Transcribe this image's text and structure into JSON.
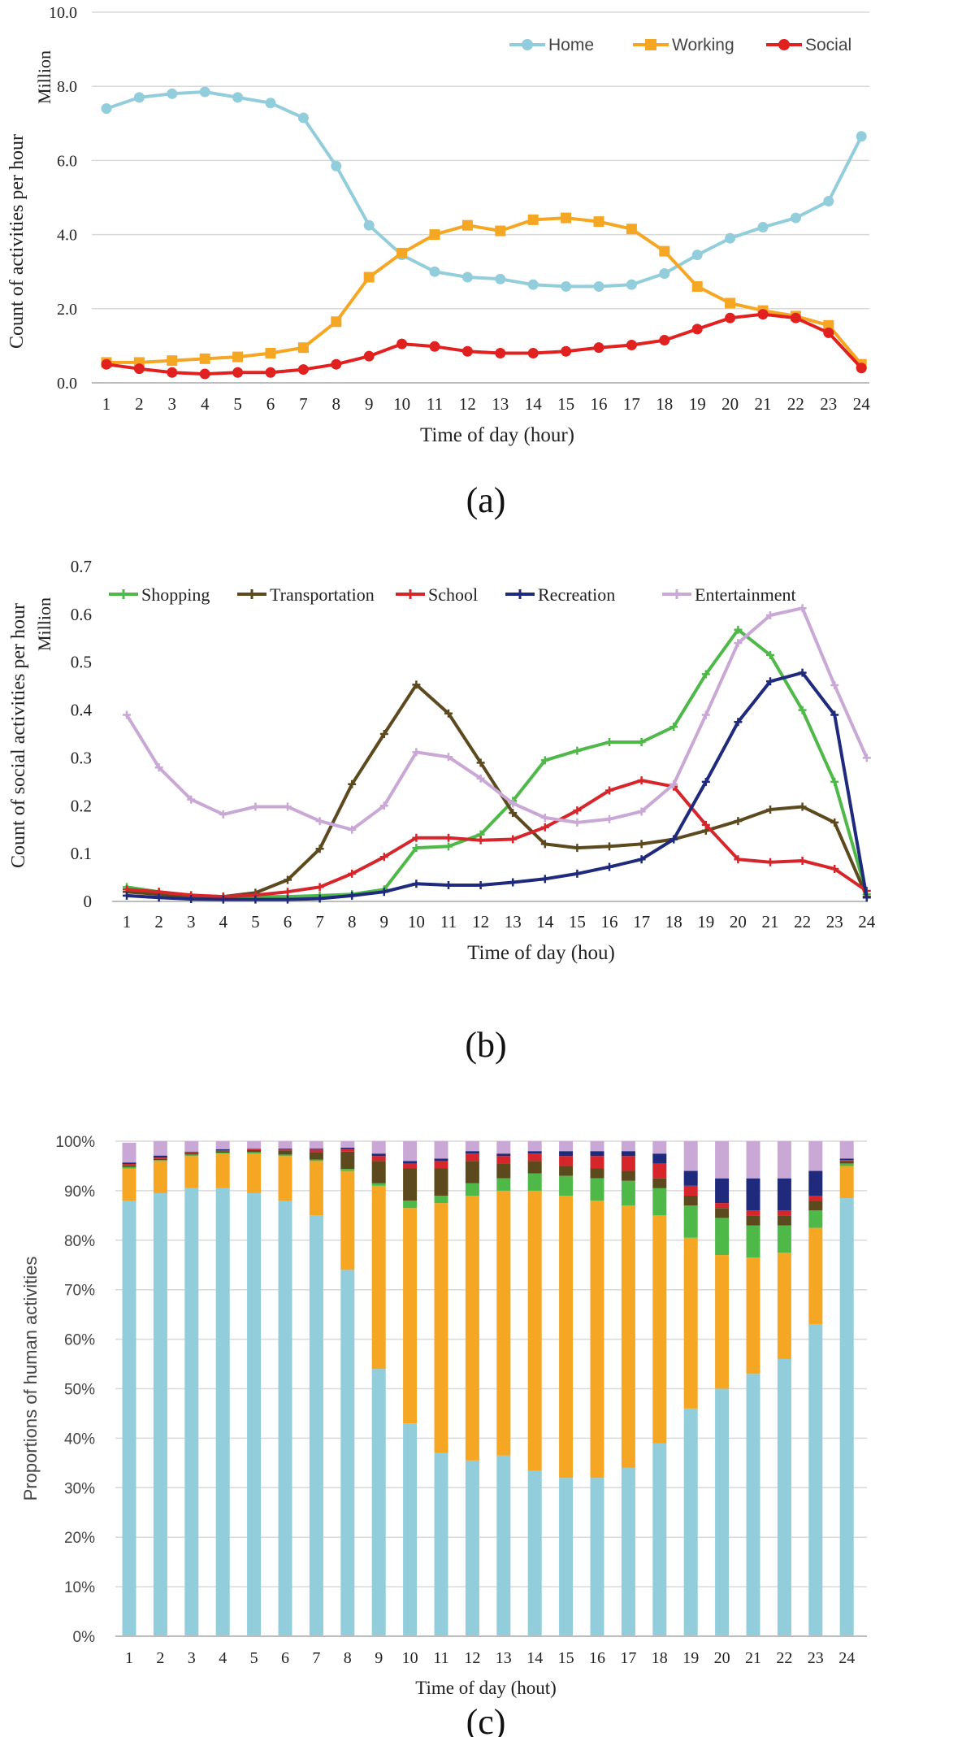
{
  "chart_data": [
    {
      "panel": "a",
      "type": "line",
      "caption": "(a)",
      "unit": "Million",
      "ylabel": "Count of activities per hour",
      "xlabel": "Time of day (hour)",
      "ylim": [
        0,
        10
      ],
      "yticks": [
        "0.0",
        "2.0",
        "4.0",
        "6.0",
        "8.0",
        "10.0"
      ],
      "x": [
        "1",
        "2",
        "3",
        "4",
        "5",
        "6",
        "7",
        "8",
        "9",
        "10",
        "11",
        "12",
        "13",
        "14",
        "15",
        "16",
        "17",
        "18",
        "19",
        "20",
        "21",
        "22",
        "23",
        "24"
      ],
      "legend_position": "top-right",
      "series": [
        {
          "name": "Home",
          "color": "#92CDDC",
          "marker": "circle",
          "values": [
            7.4,
            7.7,
            7.8,
            7.85,
            7.7,
            7.55,
            7.15,
            5.85,
            4.25,
            3.45,
            3.0,
            2.85,
            2.8,
            2.65,
            2.6,
            2.6,
            2.65,
            2.95,
            3.45,
            3.9,
            4.2,
            4.45,
            4.9,
            6.65
          ]
        },
        {
          "name": "Working",
          "color": "#F5A623",
          "marker": "square",
          "values": [
            0.55,
            0.55,
            0.6,
            0.65,
            0.7,
            0.8,
            0.95,
            1.65,
            2.85,
            3.5,
            4.0,
            4.25,
            4.1,
            4.4,
            4.45,
            4.35,
            4.15,
            3.55,
            2.6,
            2.15,
            1.95,
            1.8,
            1.55,
            0.5
          ]
        },
        {
          "name": "Social",
          "color": "#E0211F",
          "marker": "circle",
          "values": [
            0.5,
            0.38,
            0.28,
            0.24,
            0.28,
            0.28,
            0.36,
            0.5,
            0.72,
            1.05,
            0.98,
            0.85,
            0.8,
            0.8,
            0.85,
            0.95,
            1.02,
            1.15,
            1.45,
            1.75,
            1.85,
            1.75,
            1.35,
            0.4
          ]
        }
      ]
    },
    {
      "panel": "b",
      "type": "line",
      "caption": "(b)",
      "unit": "Million",
      "ylabel": "Count of social activities per hour",
      "xlabel": "Time of day (hou)",
      "ylim": [
        0,
        0.7
      ],
      "yticks": [
        "0",
        "0.1",
        "0.2",
        "0.3",
        "0.4",
        "0.5",
        "0.6",
        "0.7"
      ],
      "x": [
        "1",
        "2",
        "3",
        "4",
        "5",
        "6",
        "7",
        "8",
        "9",
        "10",
        "11",
        "12",
        "13",
        "14",
        "15",
        "16",
        "17",
        "18",
        "19",
        "20",
        "21",
        "22",
        "23",
        "24"
      ],
      "legend_position": "top",
      "series": [
        {
          "name": "Shopping",
          "color": "#4EB848",
          "values": [
            0.03,
            0.02,
            0.012,
            0.01,
            0.01,
            0.01,
            0.012,
            0.015,
            0.025,
            0.112,
            0.115,
            0.14,
            0.21,
            0.295,
            0.315,
            0.333,
            0.333,
            0.365,
            0.475,
            0.568,
            0.515,
            0.4,
            0.25,
            0.015
          ]
        },
        {
          "name": "Transportation",
          "color": "#5C4A1E",
          "values": [
            0.02,
            0.015,
            0.01,
            0.01,
            0.018,
            0.045,
            0.11,
            0.245,
            0.35,
            0.453,
            0.393,
            0.29,
            0.185,
            0.12,
            0.112,
            0.115,
            0.12,
            0.13,
            0.148,
            0.168,
            0.192,
            0.198,
            0.165,
            0.01
          ]
        },
        {
          "name": "School",
          "color": "#D7262B",
          "values": [
            0.025,
            0.02,
            0.013,
            0.01,
            0.013,
            0.02,
            0.03,
            0.058,
            0.093,
            0.133,
            0.133,
            0.128,
            0.13,
            0.155,
            0.19,
            0.232,
            0.253,
            0.24,
            0.16,
            0.088,
            0.082,
            0.085,
            0.068,
            0.022
          ]
        },
        {
          "name": "Recreation",
          "color": "#1F2A7C",
          "values": [
            0.012,
            0.008,
            0.005,
            0.004,
            0.004,
            0.004,
            0.006,
            0.012,
            0.02,
            0.037,
            0.034,
            0.034,
            0.04,
            0.047,
            0.058,
            0.072,
            0.088,
            0.13,
            0.25,
            0.375,
            0.46,
            0.478,
            0.39,
            0.008
          ]
        },
        {
          "name": "Entertainment",
          "color": "#C9A8D6",
          "values": [
            0.39,
            0.28,
            0.213,
            0.182,
            0.198,
            0.198,
            0.168,
            0.15,
            0.2,
            0.312,
            0.302,
            0.257,
            0.205,
            0.175,
            0.165,
            0.172,
            0.188,
            0.245,
            0.39,
            0.54,
            0.598,
            0.613,
            0.452,
            0.3
          ]
        }
      ]
    },
    {
      "panel": "c",
      "type": "bar",
      "stacked": true,
      "caption": "(c)",
      "ylabel": "Proportions of human activities",
      "xlabel": "Time of day (hout)",
      "ylim": [
        0,
        100
      ],
      "yticks": [
        "0%",
        "10%",
        "20%",
        "30%",
        "40%",
        "50%",
        "60%",
        "70%",
        "80%",
        "90%",
        "100%"
      ],
      "categories": [
        "1",
        "2",
        "3",
        "4",
        "5",
        "6",
        "7",
        "8",
        "9",
        "10",
        "11",
        "12",
        "13",
        "14",
        "15",
        "16",
        "17",
        "18",
        "19",
        "20",
        "21",
        "22",
        "23",
        "24"
      ],
      "series": [
        {
          "color": "#92CDDC",
          "values": [
            88,
            89.5,
            90.5,
            90.5,
            89.5,
            88,
            85,
            74,
            54,
            43,
            37,
            35.5,
            36.5,
            33.5,
            32,
            32,
            34,
            39,
            46,
            50,
            53,
            56,
            63,
            88.5
          ]
        },
        {
          "color": "#F5A623",
          "values": [
            6.5,
            6.5,
            6.5,
            7,
            8,
            9,
            11,
            20,
            37,
            43.5,
            50.5,
            53.5,
            53.5,
            56.5,
            57,
            56,
            53,
            46,
            34.5,
            27,
            23.5,
            21.5,
            19.5,
            6.5
          ]
        },
        {
          "color": "#4EB848",
          "values": [
            0.3,
            0.2,
            0.3,
            0.2,
            0.3,
            0.3,
            0.3,
            0.4,
            0.5,
            1.5,
            1.5,
            2.5,
            2.5,
            3.5,
            4,
            4.5,
            5,
            5.5,
            6.5,
            7.5,
            6.5,
            5.5,
            3.5,
            0.5
          ]
        },
        {
          "color": "#5C4A1E",
          "values": [
            0.3,
            0.3,
            0.3,
            0.3,
            0.4,
            0.8,
            1.5,
            3.5,
            4.5,
            6.5,
            5.5,
            4.5,
            3,
            2.5,
            2,
            2,
            2,
            2,
            2,
            2,
            2,
            2,
            2,
            0.5
          ]
        },
        {
          "color": "#D7262B",
          "values": [
            0.3,
            0.2,
            0.2,
            0.2,
            0.2,
            0.2,
            0.5,
            0.5,
            1,
            1,
            1.5,
            1.5,
            1.5,
            1.5,
            2,
            2.5,
            3,
            3,
            2,
            1,
            1,
            1,
            1,
            0.2
          ]
        },
        {
          "color": "#1F2A7C",
          "values": [
            0.3,
            0.4,
            0.1,
            0.2,
            0.1,
            0.2,
            0.2,
            0.3,
            0.5,
            0.5,
            0.5,
            0.5,
            0.5,
            0.5,
            1,
            1,
            1,
            2,
            3,
            5,
            6.5,
            6.5,
            5,
            0.3
          ]
        },
        {
          "color": "#C9A8D6",
          "values": [
            4,
            2.9,
            2.1,
            1.6,
            1.5,
            1.5,
            1.5,
            1.3,
            2.5,
            4,
            3.5,
            2,
            2.5,
            2,
            2,
            2,
            2,
            2.5,
            6,
            7.5,
            7.5,
            7.5,
            6,
            3.5
          ]
        }
      ]
    }
  ]
}
